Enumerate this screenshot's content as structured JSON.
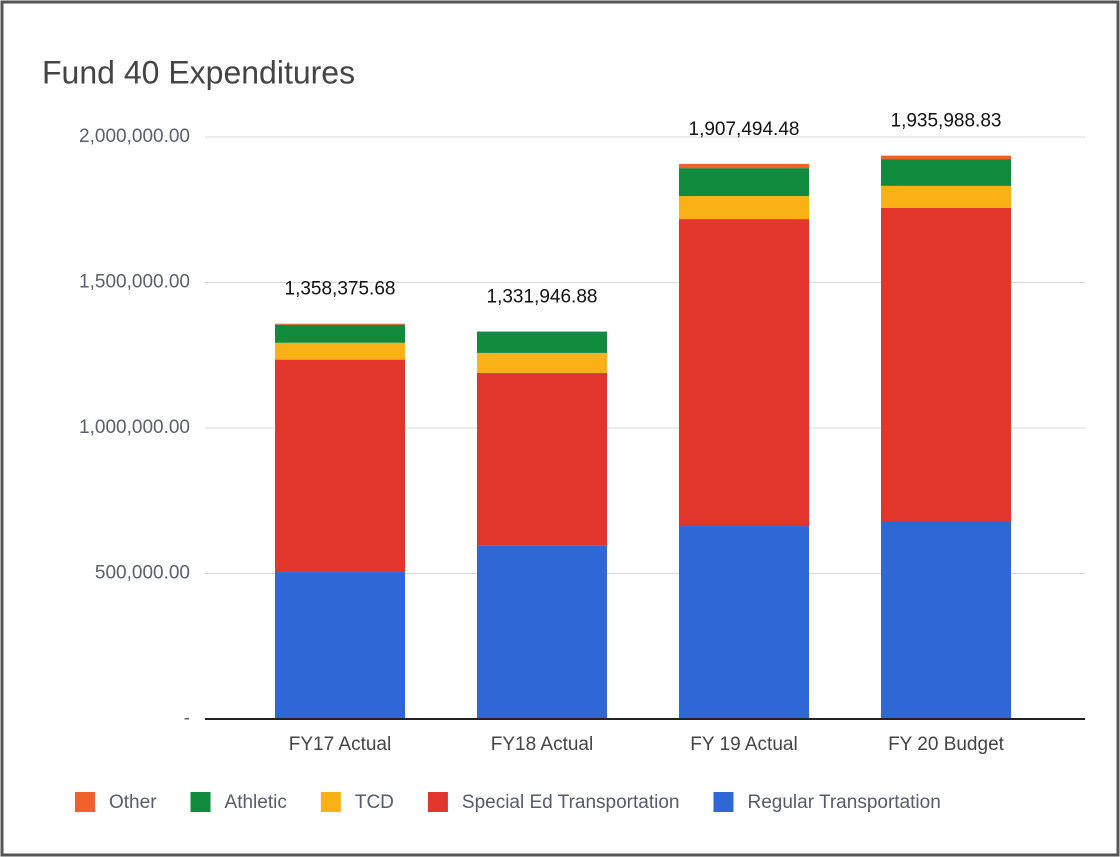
{
  "chart_data": {
    "type": "stacked_bar",
    "title": "Fund 40 Expenditures",
    "categories": [
      "FY17 Actual",
      "FY18 Actual",
      "FY 19 Actual",
      "FY 20 Budget"
    ],
    "series": [
      {
        "name": "Regular Transportation",
        "color": "#3067d6",
        "values": [
          505000,
          595000,
          663000,
          677000
        ]
      },
      {
        "name": "Special Ed Transportation",
        "color": "#e2352b",
        "values": [
          730000,
          594000,
          1055000,
          1079000
        ]
      },
      {
        "name": "TCD",
        "color": "#f9b116",
        "values": [
          58000,
          69000,
          79000,
          76000
        ]
      },
      {
        "name": "Athletic",
        "color": "#108a3c",
        "values": [
          62000,
          72000,
          96000,
          92000
        ]
      },
      {
        "name": "Other",
        "color": "#f2612b",
        "values": [
          3375.68,
          1946.88,
          14494.48,
          11988.83
        ]
      }
    ],
    "totals": {
      "values": [
        1358375.68,
        1331946.88,
        1907494.48,
        1935988.83
      ],
      "value_labels": [
        "1,358,375.68",
        "1,331,946.88",
        "1,907,494.48",
        "1,935,988.83"
      ]
    },
    "ylim": [
      0,
      2000000
    ],
    "yticks": [
      {
        "value": 0,
        "label": "-"
      },
      {
        "value": 500000,
        "label": "500,000.00"
      },
      {
        "value": 1000000,
        "label": "1,000,000.00"
      },
      {
        "value": 1500000,
        "label": "1,500,000.00"
      },
      {
        "value": 2000000,
        "label": "2,000,000.00"
      }
    ],
    "grid": true,
    "legend": "bottom"
  }
}
